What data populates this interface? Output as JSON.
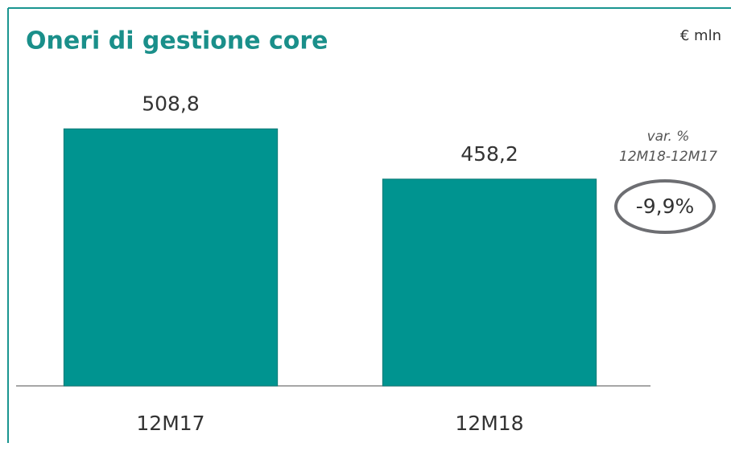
{
  "chart_data": {
    "type": "bar",
    "title": "Oneri di gestione core",
    "unit": "€ mln",
    "categories": [
      "12M17",
      "12M18"
    ],
    "values": [
      508.8,
      458.2
    ],
    "value_labels": [
      "508,8",
      "458,2"
    ],
    "color": "#009490",
    "ylim": [
      250,
      560
    ],
    "annotation": {
      "title": "var. %",
      "period": "12M18-12M17",
      "value": "-9,9%"
    }
  }
}
